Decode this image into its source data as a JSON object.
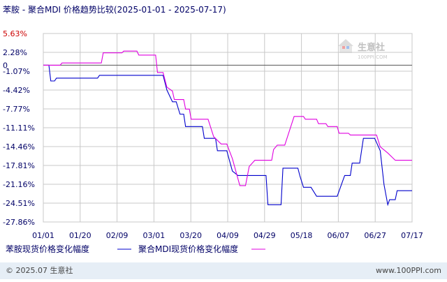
{
  "title": "苯胺 - 聚合MDI 价格趋势比较(2025-01-01 - 2025-07-17)",
  "watermark": {
    "name": "生意社",
    "url": "100PPI.COM"
  },
  "footer": {
    "left": "© 2025.07 生意社",
    "right": "www.100PPI.com"
  },
  "colors": {
    "series1": "#0000cc",
    "series2": "#e000e0",
    "grid": "#c8c8c8",
    "axis": "#000000",
    "title": "#000066",
    "tick_red": "#cc0000",
    "footer_bar": "#e6eef6"
  },
  "chart_data": {
    "type": "line",
    "title": "苯胺 - 聚合MDI 价格趋势比较(2025-01-01 - 2025-07-17)",
    "xlabel": "",
    "ylabel": "",
    "x_ticks": [
      "01/01",
      "01/20",
      "02/09",
      "03/01",
      "03/20",
      "04/09",
      "04/29",
      "05/18",
      "06/07",
      "06/27",
      "07/17"
    ],
    "y_ticks": [
      "5.63%",
      "2.28%",
      "-1.07%",
      "-4.42%",
      "-7.77%",
      "-11.11%",
      "-14.46%",
      "-17.81%",
      "-21.16%",
      "-24.51%",
      "-27.86%"
    ],
    "y_zero_label": "0",
    "ylim": [
      -27.86,
      5.63
    ],
    "grid": true,
    "legend_position": "bottom",
    "series": [
      {
        "name": "苯胺现货价格变化幅度",
        "color": "#0000cc",
        "points": [
          [
            "2025-01-01",
            0
          ],
          [
            "2025-01-04",
            0
          ],
          [
            "2025-01-05",
            -2.8
          ],
          [
            "2025-01-07",
            -2.8
          ],
          [
            "2025-01-08",
            -2.3
          ],
          [
            "2025-01-30",
            -2.3
          ],
          [
            "2025-01-31",
            -1.8
          ],
          [
            "2025-03-06",
            -1.8
          ],
          [
            "2025-03-08",
            -4.4
          ],
          [
            "2025-03-11",
            -6.5
          ],
          [
            "2025-03-13",
            -6.5
          ],
          [
            "2025-03-15",
            -8.7
          ],
          [
            "2025-03-17",
            -8.7
          ],
          [
            "2025-03-18",
            -10.9
          ],
          [
            "2025-03-27",
            -10.9
          ],
          [
            "2025-03-28",
            -13.0
          ],
          [
            "2025-04-03",
            -13.0
          ],
          [
            "2025-04-04",
            -15.2
          ],
          [
            "2025-04-09",
            -15.2
          ],
          [
            "2025-04-12",
            -18.8
          ],
          [
            "2025-04-15",
            -19.6
          ],
          [
            "2025-04-30",
            -19.6
          ],
          [
            "2025-05-01",
            -24.8
          ],
          [
            "2025-05-08",
            -24.8
          ],
          [
            "2025-05-09",
            -18.3
          ],
          [
            "2025-05-17",
            -18.3
          ],
          [
            "2025-05-18",
            -19.6
          ],
          [
            "2025-05-20",
            -21.7
          ],
          [
            "2025-05-24",
            -21.7
          ],
          [
            "2025-05-27",
            -23.3
          ],
          [
            "2025-06-07",
            -23.3
          ],
          [
            "2025-06-11",
            -19.6
          ],
          [
            "2025-06-14",
            -19.6
          ],
          [
            "2025-06-15",
            -17.4
          ],
          [
            "2025-06-19",
            -17.4
          ],
          [
            "2025-06-21",
            -13.0
          ],
          [
            "2025-06-27",
            -13.0
          ],
          [
            "2025-06-30",
            -15.2
          ],
          [
            "2025-07-02",
            -21.2
          ],
          [
            "2025-07-04",
            -24.8
          ],
          [
            "2025-07-05",
            -23.9
          ],
          [
            "2025-07-08",
            -23.9
          ],
          [
            "2025-07-09",
            -22.3
          ],
          [
            "2025-07-17",
            -22.3
          ]
        ]
      },
      {
        "name": "聚合MDI现货价格变化幅度",
        "color": "#e000e0",
        "points": [
          [
            "2025-01-01",
            0
          ],
          [
            "2025-01-10",
            0
          ],
          [
            "2025-01-11",
            0.4
          ],
          [
            "2025-02-01",
            0.4
          ],
          [
            "2025-02-02",
            2.2
          ],
          [
            "2025-02-12",
            2.2
          ],
          [
            "2025-02-13",
            2.5
          ],
          [
            "2025-02-20",
            2.5
          ],
          [
            "2025-02-21",
            1.8
          ],
          [
            "2025-03-02",
            1.8
          ],
          [
            "2025-03-03",
            -1.3
          ],
          [
            "2025-03-06",
            -1.3
          ],
          [
            "2025-03-08",
            -3.9
          ],
          [
            "2025-03-11",
            -4.6
          ],
          [
            "2025-03-12",
            -6.1
          ],
          [
            "2025-03-17",
            -6.1
          ],
          [
            "2025-03-18",
            -7.8
          ],
          [
            "2025-03-20",
            -7.8
          ],
          [
            "2025-03-21",
            -9.6
          ],
          [
            "2025-03-30",
            -9.6
          ],
          [
            "2025-04-02",
            -12.7
          ],
          [
            "2025-04-06",
            -14.0
          ],
          [
            "2025-04-09",
            -14.0
          ],
          [
            "2025-04-12",
            -16.6
          ],
          [
            "2025-04-16",
            -21.4
          ],
          [
            "2025-04-19",
            -21.4
          ],
          [
            "2025-04-21",
            -18.0
          ],
          [
            "2025-04-24",
            -16.9
          ],
          [
            "2025-05-03",
            -16.9
          ],
          [
            "2025-05-04",
            -15.0
          ],
          [
            "2025-05-06",
            -14.2
          ],
          [
            "2025-05-10",
            -14.2
          ],
          [
            "2025-05-15",
            -9.1
          ],
          [
            "2025-05-20",
            -9.1
          ],
          [
            "2025-05-21",
            -9.6
          ],
          [
            "2025-05-27",
            -9.6
          ],
          [
            "2025-05-28",
            -10.4
          ],
          [
            "2025-06-01",
            -10.4
          ],
          [
            "2025-06-02",
            -10.9
          ],
          [
            "2025-06-07",
            -10.9
          ],
          [
            "2025-06-08",
            -12.1
          ],
          [
            "2025-06-13",
            -12.1
          ],
          [
            "2025-06-14",
            -12.4
          ],
          [
            "2025-06-28",
            -12.4
          ],
          [
            "2025-06-30",
            -14.5
          ],
          [
            "2025-07-04",
            -15.6
          ],
          [
            "2025-07-08",
            -16.9
          ],
          [
            "2025-07-17",
            -16.9
          ]
        ]
      }
    ]
  }
}
